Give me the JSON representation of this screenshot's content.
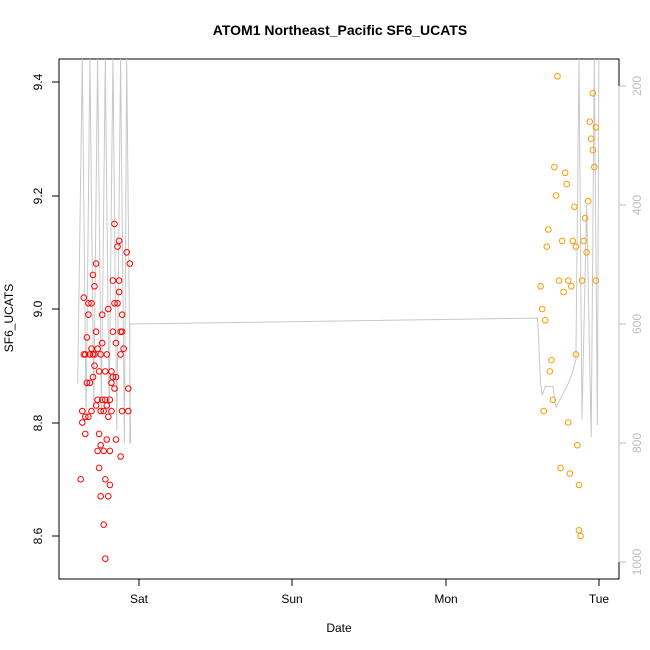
{
  "chart_data": {
    "type": "scatter",
    "title": "ATOM1 Northeast_Pacific SF6_UCATS",
    "xlabel": "Date",
    "ylabel": "SF6_UCATS",
    "x_ticks": [
      "Sat",
      "Sun",
      "Mon",
      "Tue"
    ],
    "y_ticks": [
      "8.6",
      "8.8",
      "9.0",
      "9.2",
      "9.4"
    ],
    "y2_ticks": [
      "200",
      "400",
      "600",
      "800",
      "1000"
    ],
    "xlim_days": [
      -0.43,
      3.05
    ],
    "ylim": [
      8.53,
      9.42
    ],
    "y2lim": [
      1010,
      190
    ],
    "grid": false,
    "colors": {
      "series_1": "#ff0000",
      "series_2": "#ff9900",
      "pressure_line": "#c8c8c8",
      "right_axis": "#bdbdbd"
    },
    "series": [
      {
        "points": [
          [
            -0.38,
            8.7
          ],
          [
            -0.37,
            8.8
          ],
          [
            -0.37,
            8.82
          ],
          [
            -0.36,
            8.92
          ],
          [
            -0.36,
            9.02
          ],
          [
            -0.35,
            8.81
          ],
          [
            -0.35,
            8.92
          ],
          [
            -0.35,
            8.78
          ],
          [
            -0.34,
            8.95
          ],
          [
            -0.34,
            8.87
          ],
          [
            -0.33,
            8.99
          ],
          [
            -0.33,
            8.81
          ],
          [
            -0.33,
            9.01
          ],
          [
            -0.32,
            8.92
          ],
          [
            -0.32,
            8.87
          ],
          [
            -0.31,
            8.93
          ],
          [
            -0.31,
            8.82
          ],
          [
            -0.31,
            9.01
          ],
          [
            -0.3,
            8.92
          ],
          [
            -0.3,
            8.88
          ],
          [
            -0.3,
            9.06
          ],
          [
            -0.29,
            8.9
          ],
          [
            -0.29,
            9.04
          ],
          [
            -0.29,
            8.92
          ],
          [
            -0.28,
            8.83
          ],
          [
            -0.28,
            8.96
          ],
          [
            -0.28,
            9.08
          ],
          [
            -0.27,
            8.75
          ],
          [
            -0.27,
            8.84
          ],
          [
            -0.27,
            8.93
          ],
          [
            -0.26,
            8.72
          ],
          [
            -0.26,
            8.78
          ],
          [
            -0.26,
            8.89
          ],
          [
            -0.25,
            8.67
          ],
          [
            -0.25,
            8.76
          ],
          [
            -0.25,
            8.82
          ],
          [
            -0.25,
            8.92
          ],
          [
            -0.24,
            8.94
          ],
          [
            -0.24,
            8.84
          ],
          [
            -0.24,
            8.99
          ],
          [
            -0.23,
            8.62
          ],
          [
            -0.23,
            8.75
          ],
          [
            -0.23,
            8.82
          ],
          [
            -0.22,
            8.56
          ],
          [
            -0.22,
            8.7
          ],
          [
            -0.22,
            8.84
          ],
          [
            -0.22,
            8.89
          ],
          [
            -0.21,
            8.77
          ],
          [
            -0.21,
            8.83
          ],
          [
            -0.21,
            8.92
          ],
          [
            -0.2,
            8.67
          ],
          [
            -0.2,
            8.81
          ],
          [
            -0.2,
            9.0
          ],
          [
            -0.19,
            8.69
          ],
          [
            -0.19,
            8.75
          ],
          [
            -0.19,
            8.84
          ],
          [
            -0.18,
            8.82
          ],
          [
            -0.18,
            8.87
          ],
          [
            -0.18,
            8.89
          ],
          [
            -0.17,
            8.88
          ],
          [
            -0.17,
            8.96
          ],
          [
            -0.17,
            9.05
          ],
          [
            -0.16,
            8.86
          ],
          [
            -0.16,
            9.01
          ],
          [
            -0.16,
            9.15
          ],
          [
            -0.15,
            8.77
          ],
          [
            -0.15,
            8.88
          ],
          [
            -0.15,
            8.94
          ],
          [
            -0.14,
            9.01
          ],
          [
            -0.14,
            9.11
          ],
          [
            -0.13,
            9.03
          ],
          [
            -0.13,
            9.05
          ],
          [
            -0.13,
            9.12
          ],
          [
            -0.12,
            8.74
          ],
          [
            -0.12,
            8.92
          ],
          [
            -0.12,
            8.96
          ],
          [
            -0.11,
            8.82
          ],
          [
            -0.11,
            8.99
          ],
          [
            -0.11,
            8.96
          ],
          [
            -0.1,
            8.93
          ],
          [
            -0.08,
            9.1
          ],
          [
            -0.07,
            8.86
          ],
          [
            -0.06,
            9.08
          ],
          [
            -0.07,
            8.82
          ]
        ]
      },
      {
        "points": [
          [
            2.62,
            9.04
          ],
          [
            2.63,
            9.0
          ],
          [
            2.64,
            8.82
          ],
          [
            2.65,
            8.98
          ],
          [
            2.66,
            9.11
          ],
          [
            2.67,
            9.14
          ],
          [
            2.68,
            8.89
          ],
          [
            2.69,
            8.91
          ],
          [
            2.7,
            8.84
          ],
          [
            2.71,
            9.25
          ],
          [
            2.72,
            9.2
          ],
          [
            2.73,
            9.41
          ],
          [
            2.74,
            9.05
          ],
          [
            2.75,
            8.72
          ],
          [
            2.76,
            9.12
          ],
          [
            2.77,
            9.03
          ],
          [
            2.78,
            9.24
          ],
          [
            2.79,
            9.22
          ],
          [
            2.8,
            8.8
          ],
          [
            2.8,
            9.05
          ],
          [
            2.81,
            8.71
          ],
          [
            2.82,
            9.04
          ],
          [
            2.83,
            9.12
          ],
          [
            2.84,
            9.18
          ],
          [
            2.85,
            9.11
          ],
          [
            2.85,
            8.92
          ],
          [
            2.86,
            8.76
          ],
          [
            2.87,
            8.69
          ],
          [
            2.87,
            8.61
          ],
          [
            2.88,
            8.6
          ],
          [
            2.89,
            9.05
          ],
          [
            2.9,
            9.12
          ],
          [
            2.91,
            9.16
          ],
          [
            2.92,
            9.1
          ],
          [
            2.93,
            9.19
          ],
          [
            2.94,
            9.33
          ],
          [
            2.95,
            9.3
          ],
          [
            2.96,
            9.38
          ],
          [
            2.97,
            9.25
          ],
          [
            2.98,
            9.05
          ],
          [
            2.96,
            9.28
          ],
          [
            2.98,
            9.32
          ]
        ]
      }
    ]
  }
}
